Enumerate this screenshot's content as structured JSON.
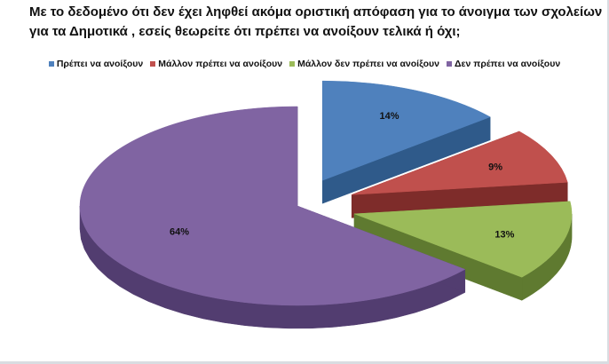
{
  "chart_data": {
    "type": "pie",
    "title_lines": [
      "Με το δεδομένο ότι δεν έχει ληφθεί ακόμα οριστική απόφαση για το άνοιγμα των σχολείων",
      "για τα Δημοτικά , εσείς θεωρείτε ότι πρέπει να ανοίξουν τελικά  ή όχι;"
    ],
    "legend_position": "top",
    "three_d": true,
    "categories": [
      "Πρέπει να ανοίξουν",
      "Μάλλον πρέπει να ανοίξουν",
      "Μάλλον δεν πρέπει να ανοίξουν",
      "Δεν πρέπει να ανοίξουν"
    ],
    "values": [
      14,
      9,
      13,
      64
    ],
    "labels": [
      "14%",
      "9%",
      "13%",
      "64%"
    ],
    "colors": [
      "#4f81bd",
      "#c0504d",
      "#9bbb59",
      "#8064a2"
    ],
    "side_colors": [
      "#2f5a8a",
      "#7e2c2a",
      "#5f7a30",
      "#523d70"
    ]
  }
}
